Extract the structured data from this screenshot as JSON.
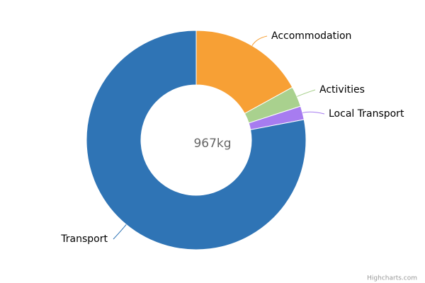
{
  "chart_data": {
    "type": "pie",
    "center_label": "967kg",
    "credits": "Highcharts.com",
    "categories": [
      "Accommodation",
      "Activities",
      "Local Transport",
      "Transport"
    ],
    "values": [
      17,
      3,
      2,
      78
    ],
    "colors": [
      "#f7a035",
      "#a9d18e",
      "#a77cf0",
      "#2f74b5"
    ]
  }
}
